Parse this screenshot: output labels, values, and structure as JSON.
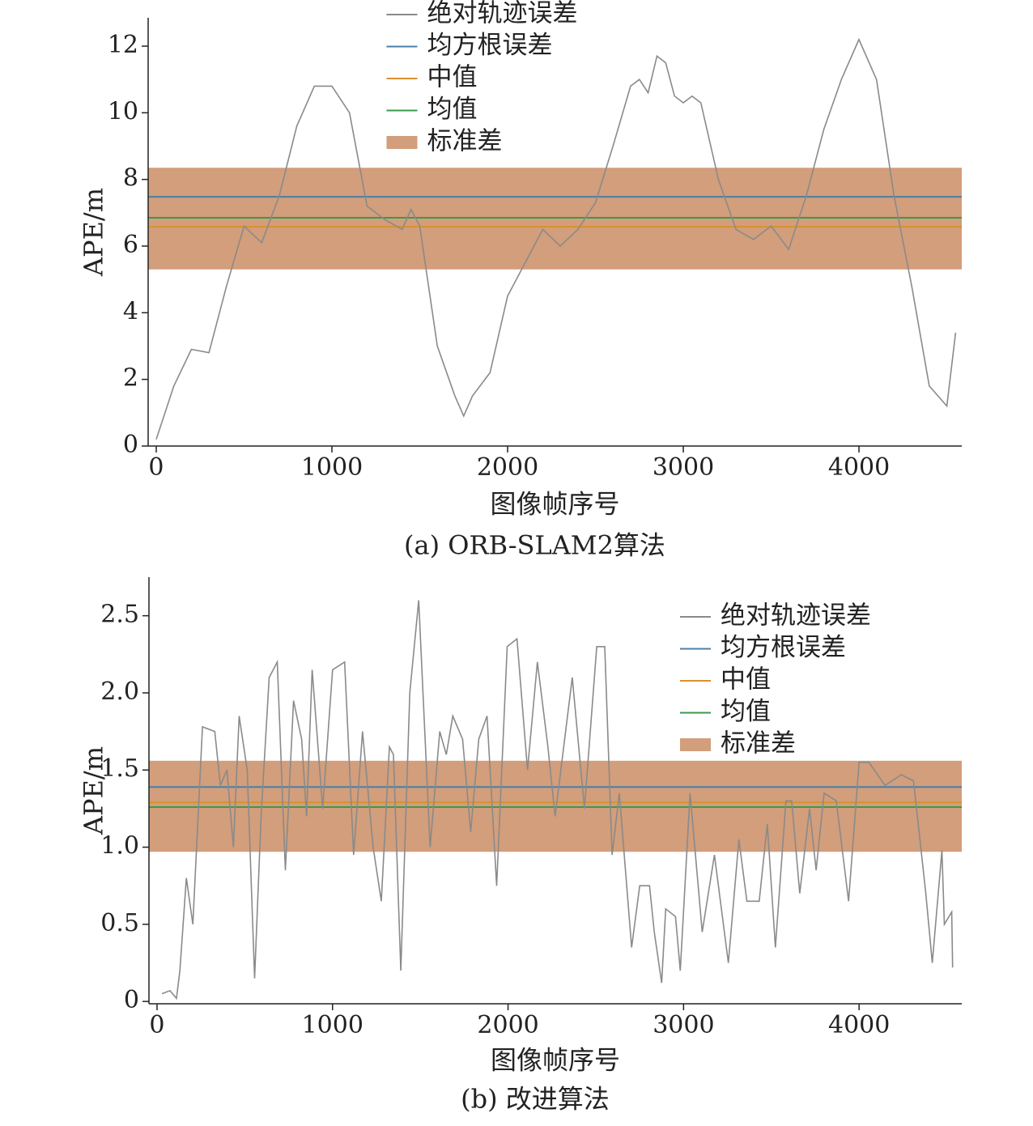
{
  "chart_data": [
    {
      "type": "line",
      "caption": "(a) ORB-SLAM2算法",
      "xlabel": "图像帧序号",
      "ylabel": "APE/m",
      "xlim": [
        -46,
        4585
      ],
      "ylim": [
        0,
        12.85
      ],
      "xticks": [
        0,
        1000,
        2000,
        3000,
        4000
      ],
      "yticks": [
        0,
        2,
        4,
        6,
        8,
        10,
        12
      ],
      "legend_position": "upper center",
      "x": [
        0,
        100,
        200,
        300,
        400,
        500,
        600,
        700,
        800,
        900,
        1000,
        1100,
        1200,
        1300,
        1400,
        1450,
        1500,
        1600,
        1700,
        1750,
        1800,
        1900,
        2000,
        2100,
        2200,
        2300,
        2400,
        2500,
        2600,
        2700,
        2750,
        2800,
        2850,
        2900,
        2950,
        3000,
        3050,
        3100,
        3200,
        3300,
        3400,
        3500,
        3600,
        3700,
        3800,
        3900,
        4000,
        4100,
        4200,
        4300,
        4400,
        4500,
        4550
      ],
      "series": [
        {
          "name": "绝对轨迹误差",
          "color": "#8a8a8a",
          "values": [
            0.2,
            1.8,
            2.9,
            2.8,
            4.8,
            6.6,
            6.1,
            7.5,
            9.6,
            10.8,
            10.8,
            10.0,
            7.2,
            6.8,
            6.5,
            7.1,
            6.6,
            3.0,
            1.5,
            0.9,
            1.5,
            2.2,
            4.5,
            5.5,
            6.5,
            6.0,
            6.5,
            7.3,
            9.0,
            10.8,
            11.0,
            10.6,
            11.7,
            11.5,
            10.5,
            10.3,
            10.5,
            10.3,
            8.0,
            6.5,
            6.2,
            6.6,
            5.9,
            7.5,
            9.5,
            11.0,
            12.2,
            11.0,
            7.5,
            4.8,
            1.8,
            1.2,
            3.4
          ]
        }
      ],
      "hlines": [
        {
          "name": "均方根误差",
          "color": "#4a7fa8",
          "value": 7.48
        },
        {
          "name": "中值",
          "color": "#d9912f",
          "value": 6.58
        },
        {
          "name": "均值",
          "color": "#3a9a4a",
          "value": 6.85
        }
      ],
      "band": {
        "name": "标准差",
        "color": "#d29e7b",
        "range": [
          5.3,
          8.35
        ]
      }
    },
    {
      "type": "line",
      "caption": "(b) 改进算法",
      "xlabel": "图像帧序号",
      "ylabel": "APE/m",
      "xlim": [
        -46,
        4585
      ],
      "ylim": [
        -0.015,
        2.75
      ],
      "xticks": [
        0,
        1000,
        2000,
        3000,
        4000
      ],
      "yticks": [
        0,
        0.5,
        {
          "value": 1,
          "label": "1.0"
        },
        1.5,
        {
          "value": 2,
          "label": "2.0"
        },
        2.5
      ],
      "legend_position": "upper right",
      "x": [
        28,
        74,
        111,
        130,
        167,
        204,
        259,
        329,
        361,
        398,
        435,
        468,
        514,
        556,
        593,
        639,
        685,
        731,
        778,
        824,
        852,
        884,
        944,
        1000,
        1069,
        1120,
        1171,
        1231,
        1278,
        1324,
        1347,
        1389,
        1440,
        1491,
        1556,
        1611,
        1648,
        1685,
        1741,
        1787,
        1833,
        1880,
        1935,
        1995,
        2051,
        2111,
        2167,
        2227,
        2268,
        2366,
        2435,
        2505,
        2551,
        2593,
        2634,
        2704,
        2750,
        2806,
        2833,
        2875,
        2898,
        2954,
        2981,
        3037,
        3106,
        3176,
        3255,
        3315,
        3361,
        3431,
        3477,
        3523,
        3583,
        3616,
        3662,
        3718,
        3755,
        3801,
        3870,
        3940,
        4000,
        4056,
        4148,
        4241,
        4310,
        4380,
        4417,
        4472,
        4486,
        4528,
        4533
      ],
      "series": [
        {
          "name": "绝对轨迹误差",
          "color": "#8a8a8a",
          "values": [
            0.05,
            0.07,
            0.02,
            0.2,
            0.8,
            0.5,
            1.78,
            1.75,
            1.4,
            1.5,
            1.0,
            1.85,
            1.5,
            0.15,
            1.2,
            2.1,
            2.2,
            0.85,
            1.95,
            1.7,
            1.2,
            2.15,
            1.25,
            2.15,
            2.2,
            0.95,
            1.75,
            1.0,
            0.65,
            1.65,
            1.6,
            0.2,
            2.0,
            2.6,
            1.0,
            1.75,
            1.6,
            1.85,
            1.7,
            1.1,
            1.7,
            1.85,
            0.75,
            2.3,
            2.35,
            1.5,
            2.2,
            1.65,
            1.2,
            2.1,
            1.25,
            2.3,
            2.3,
            0.95,
            1.35,
            0.35,
            0.75,
            0.75,
            0.45,
            0.12,
            0.6,
            0.55,
            0.2,
            1.35,
            0.45,
            0.95,
            0.25,
            1.05,
            0.65,
            0.65,
            1.15,
            0.35,
            1.3,
            1.3,
            0.7,
            1.25,
            0.85,
            1.35,
            1.3,
            0.65,
            1.55,
            1.55,
            1.4,
            1.47,
            1.43,
            0.7,
            0.25,
            0.98,
            0.5,
            0.58,
            0.22
          ]
        }
      ],
      "hlines": [
        {
          "name": "均方根误差",
          "color": "#4a7fa8",
          "value": 1.39
        },
        {
          "name": "中值",
          "color": "#d9912f",
          "value": 1.29
        },
        {
          "name": "均值",
          "color": "#3a9a4a",
          "value": 1.26
        }
      ],
      "band": {
        "name": "标准差",
        "color": "#d29e7b",
        "range": [
          0.97,
          1.56
        ]
      }
    }
  ]
}
